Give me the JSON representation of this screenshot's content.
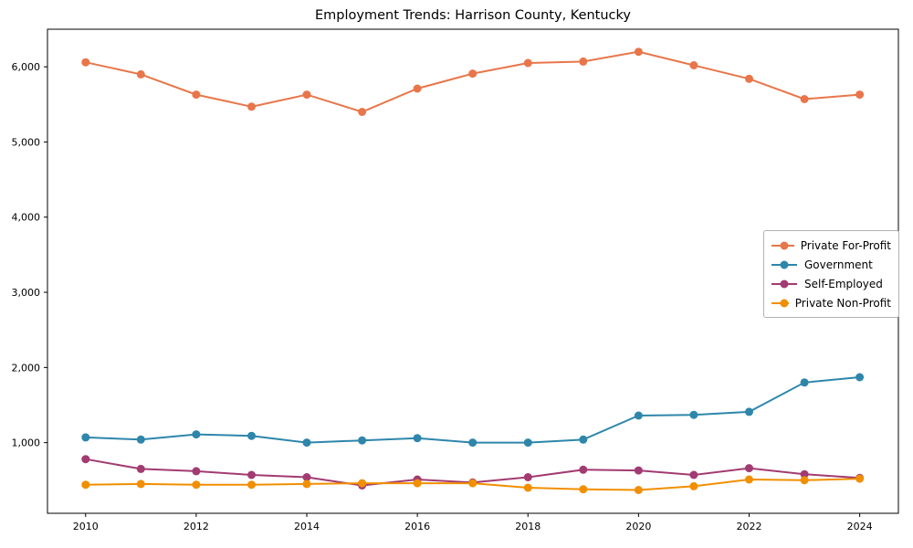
{
  "page": {
    "background": "#ffffff"
  },
  "chart_data": {
    "type": "line",
    "title": "Employment Trends: Harrison County, Kentucky",
    "xlabel": "",
    "ylabel": "",
    "x": [
      2010,
      2011,
      2012,
      2013,
      2014,
      2015,
      2016,
      2017,
      2018,
      2019,
      2020,
      2021,
      2022,
      2023,
      2024
    ],
    "series": [
      {
        "name": "Private For-Profit",
        "color": "#E8764A",
        "values": [
          6060,
          5900,
          5630,
          5470,
          5630,
          5400,
          5710,
          5910,
          6050,
          6070,
          6200,
          6020,
          5840,
          5570,
          5630
        ]
      },
      {
        "name": "Government",
        "color": "#2E86AB",
        "values": [
          1070,
          1040,
          1110,
          1090,
          1000,
          1030,
          1060,
          1000,
          1000,
          1040,
          1360,
          1370,
          1410,
          1800,
          1870
        ]
      },
      {
        "name": "Self-Employed",
        "color": "#A23B72",
        "values": [
          780,
          650,
          620,
          570,
          540,
          430,
          510,
          470,
          540,
          640,
          630,
          570,
          660,
          580,
          530
        ]
      },
      {
        "name": "Private Non-Profit",
        "color": "#F18F01",
        "values": [
          440,
          450,
          440,
          440,
          450,
          460,
          460,
          460,
          400,
          380,
          370,
          420,
          510,
          500,
          520
        ]
      }
    ],
    "x_ticks": {
      "values": [
        2010,
        2012,
        2014,
        2016,
        2018,
        2020,
        2022,
        2024
      ],
      "labels": [
        "2010",
        "2012",
        "2014",
        "2016",
        "2018",
        "2020",
        "2022",
        "2024"
      ]
    },
    "y_ticks": {
      "values": [
        1000,
        2000,
        3000,
        4000,
        5000,
        6000
      ],
      "labels": [
        "1,000",
        "2,000",
        "3,000",
        "4,000",
        "5,000",
        "6,000"
      ]
    },
    "xlim": [
      2009.31,
      2024.7
    ],
    "ylim": [
      60,
      6500
    ],
    "grid": false,
    "legend_position": "center right",
    "marker": "circle",
    "axis_color": "#000000"
  }
}
